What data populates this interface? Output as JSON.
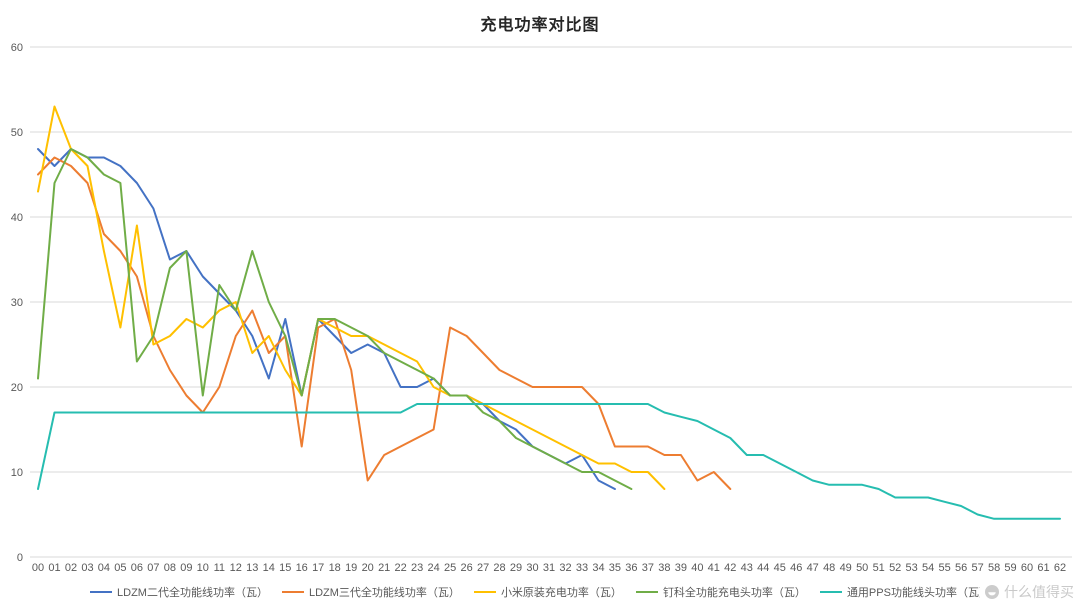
{
  "title": "充电功率对比图",
  "watermark": "什么值得买",
  "axis": {
    "y_tick_labels": [
      "0",
      "10",
      "20",
      "30",
      "40",
      "50",
      "60"
    ],
    "x_first_label": "00",
    "x_last_label": "62"
  },
  "chart_data": {
    "type": "line",
    "title": "充电功率对比图",
    "xlabel": "",
    "ylabel": "",
    "ylim": [
      0,
      60
    ],
    "y_ticks": [
      0,
      10,
      20,
      30,
      40,
      50,
      60
    ],
    "grid": true,
    "legend_position": "bottom",
    "x_labels": [
      "00",
      "01",
      "02",
      "03",
      "04",
      "05",
      "06",
      "07",
      "08",
      "09",
      "10",
      "11",
      "12",
      "13",
      "14",
      "15",
      "16",
      "17",
      "18",
      "19",
      "20",
      "21",
      "22",
      "23",
      "24",
      "25",
      "26",
      "27",
      "28",
      "29",
      "30",
      "31",
      "32",
      "33",
      "34",
      "35",
      "36",
      "37",
      "38",
      "39",
      "40",
      "41",
      "42",
      "43",
      "44",
      "45",
      "46",
      "47",
      "48",
      "49",
      "50",
      "51",
      "52",
      "53",
      "54",
      "55",
      "56",
      "57",
      "58",
      "59",
      "60",
      "61",
      "62"
    ],
    "series": [
      {
        "name": "LDZM二代全功能线功率（瓦）",
        "color": "#4472C4",
        "values": [
          48,
          46,
          48,
          47,
          47,
          46,
          44,
          41,
          35,
          36,
          33,
          31,
          29,
          26,
          21,
          28,
          19,
          28,
          26,
          24,
          25,
          24,
          20,
          20,
          21,
          19,
          19,
          18,
          16,
          15,
          13,
          12,
          11,
          12,
          9,
          8
        ]
      },
      {
        "name": "LDZM三代全功能线功率（瓦）",
        "color": "#ED7D31",
        "values": [
          45,
          47,
          46,
          44,
          38,
          36,
          33,
          26,
          22,
          19,
          17,
          20,
          26,
          29,
          24,
          26,
          13,
          27,
          28,
          22,
          9,
          12,
          13,
          14,
          15,
          27,
          26,
          24,
          22,
          21,
          20,
          20,
          20,
          20,
          18,
          13,
          13,
          13,
          12,
          12,
          9,
          10,
          8
        ]
      },
      {
        "name": "小米原装充电功率（瓦）",
        "color": "#FFC000",
        "values": [
          43,
          53,
          48,
          46,
          36,
          27,
          39,
          25,
          26,
          28,
          27,
          29,
          30,
          24,
          26,
          22,
          19,
          28,
          27,
          26,
          26,
          25,
          24,
          23,
          20,
          19,
          19,
          18,
          17,
          16,
          15,
          14,
          13,
          12,
          11,
          11,
          10,
          10,
          8
        ]
      },
      {
        "name": "钉科全功能充电头功率（瓦）",
        "color": "#70AD47",
        "values": [
          21,
          44,
          48,
          47,
          45,
          44,
          23,
          26,
          34,
          36,
          19,
          32,
          29,
          36,
          30,
          26,
          19,
          28,
          28,
          27,
          26,
          24,
          23,
          22,
          21,
          19,
          19,
          17,
          16,
          14,
          13,
          12,
          11,
          10,
          10,
          9,
          8
        ]
      },
      {
        "name": "通用PPS功能线头功率（瓦）",
        "color": "#26BDB0",
        "values": [
          8,
          17,
          17,
          17,
          17,
          17,
          17,
          17,
          17,
          17,
          17,
          17,
          17,
          17,
          17,
          17,
          17,
          17,
          17,
          17,
          17,
          17,
          17,
          18,
          18,
          18,
          18,
          18,
          18,
          18,
          18,
          18,
          18,
          18,
          18,
          18,
          18,
          18,
          17,
          16.5,
          16,
          15,
          14,
          12,
          12,
          11,
          10,
          9,
          8.5,
          8.5,
          8.5,
          8,
          7,
          7,
          7,
          6.5,
          6,
          5,
          4.5,
          4.5,
          4.5,
          4.5,
          4.5
        ]
      }
    ]
  }
}
